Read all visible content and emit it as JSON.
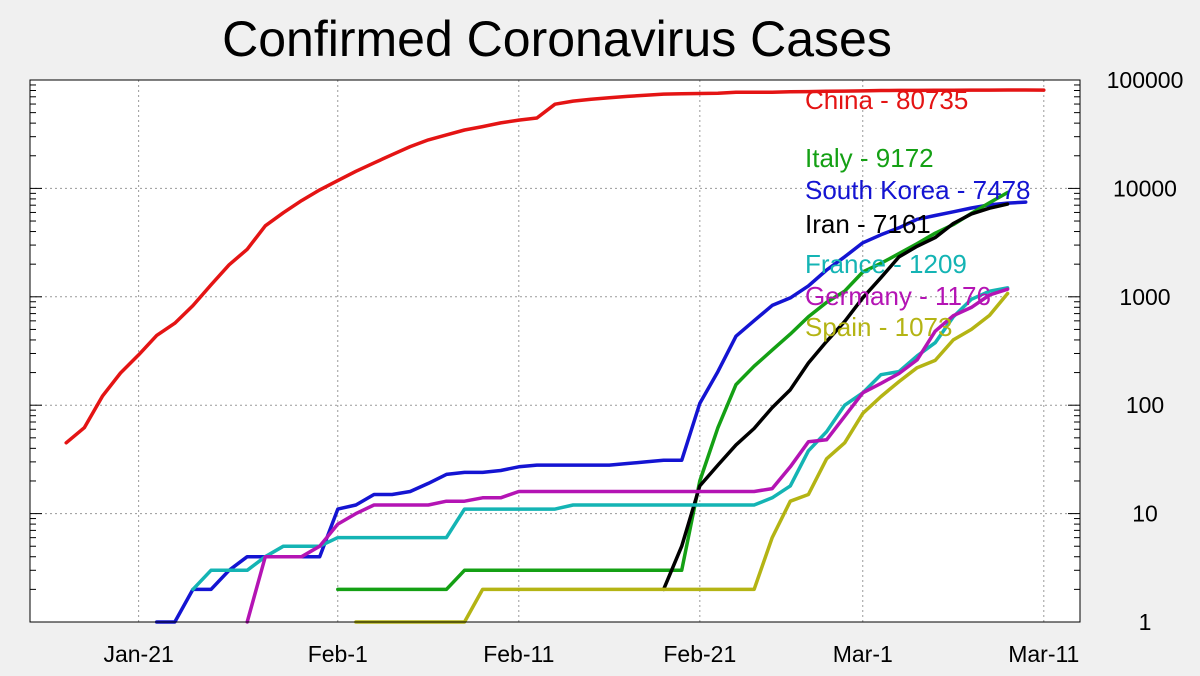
{
  "chart_data": {
    "type": "line",
    "title": "Confirmed Coronavirus Cases",
    "xlabel": "",
    "ylabel": "",
    "y_scale": "log",
    "ylim": [
      1,
      100000
    ],
    "xlim_day": [
      -6,
      52
    ],
    "grid": true,
    "y_axis_side": "right",
    "y_ticks": [
      {
        "value": 1,
        "label": "1"
      },
      {
        "value": 10,
        "label": "10"
      },
      {
        "value": 100,
        "label": "100"
      },
      {
        "value": 1000,
        "label": "1000"
      },
      {
        "value": 10000,
        "label": "10000"
      },
      {
        "value": 100000,
        "label": "100000"
      }
    ],
    "x_ticks": [
      {
        "day": 0,
        "label": "Jan-21"
      },
      {
        "day": 11,
        "label": "Feb-1"
      },
      {
        "day": 21,
        "label": "Feb-11"
      },
      {
        "day": 31,
        "label": "Feb-21"
      },
      {
        "day": 40,
        "label": "Mar-1"
      },
      {
        "day": 50,
        "label": "Mar-11"
      }
    ],
    "series": [
      {
        "name": "China",
        "label": "China - 80735",
        "color": "#e41414",
        "points": [
          [
            -4,
            45
          ],
          [
            -3,
            62
          ],
          [
            -2,
            121
          ],
          [
            -1,
            198
          ],
          [
            0,
            291
          ],
          [
            1,
            440
          ],
          [
            2,
            571
          ],
          [
            3,
            830
          ],
          [
            4,
            1287
          ],
          [
            5,
            1975
          ],
          [
            6,
            2744
          ],
          [
            7,
            4515
          ],
          [
            8,
            5974
          ],
          [
            9,
            7711
          ],
          [
            10,
            9692
          ],
          [
            11,
            11791
          ],
          [
            12,
            14380
          ],
          [
            13,
            17205
          ],
          [
            14,
            20438
          ],
          [
            15,
            24324
          ],
          [
            16,
            28018
          ],
          [
            17,
            31161
          ],
          [
            18,
            34546
          ],
          [
            19,
            37198
          ],
          [
            20,
            40171
          ],
          [
            21,
            42638
          ],
          [
            22,
            44653
          ],
          [
            23,
            59804
          ],
          [
            24,
            63851
          ],
          [
            25,
            66492
          ],
          [
            26,
            68500
          ],
          [
            27,
            70548
          ],
          [
            28,
            72436
          ],
          [
            29,
            74185
          ],
          [
            30,
            74576
          ],
          [
            31,
            75077
          ],
          [
            32,
            75550
          ],
          [
            33,
            77001
          ],
          [
            34,
            77022
          ],
          [
            35,
            77241
          ],
          [
            36,
            77754
          ],
          [
            37,
            78166
          ],
          [
            38,
            78600
          ],
          [
            39,
            78928
          ],
          [
            40,
            79356
          ],
          [
            41,
            79932
          ],
          [
            42,
            80136
          ],
          [
            43,
            80261
          ],
          [
            44,
            80386
          ],
          [
            45,
            80537
          ],
          [
            46,
            80690
          ],
          [
            47,
            80770
          ],
          [
            48,
            80823
          ],
          [
            49,
            80860
          ],
          [
            50,
            80735
          ]
        ]
      },
      {
        "name": "South Korea",
        "label": "South Korea - 7478",
        "color": "#1414d2",
        "points": [
          [
            1,
            1
          ],
          [
            2,
            1
          ],
          [
            3,
            2
          ],
          [
            4,
            2
          ],
          [
            5,
            3
          ],
          [
            6,
            4
          ],
          [
            7,
            4
          ],
          [
            8,
            4
          ],
          [
            9,
            4
          ],
          [
            10,
            4
          ],
          [
            11,
            11
          ],
          [
            12,
            12
          ],
          [
            13,
            15
          ],
          [
            14,
            15
          ],
          [
            15,
            16
          ],
          [
            16,
            19
          ],
          [
            17,
            23
          ],
          [
            18,
            24
          ],
          [
            19,
            24
          ],
          [
            20,
            25
          ],
          [
            21,
            27
          ],
          [
            22,
            28
          ],
          [
            23,
            28
          ],
          [
            24,
            28
          ],
          [
            25,
            28
          ],
          [
            26,
            28
          ],
          [
            27,
            29
          ],
          [
            28,
            30
          ],
          [
            29,
            31
          ],
          [
            30,
            31
          ],
          [
            31,
            104
          ],
          [
            32,
            204
          ],
          [
            33,
            433
          ],
          [
            34,
            602
          ],
          [
            35,
            833
          ],
          [
            36,
            977
          ],
          [
            37,
            1261
          ],
          [
            38,
            1766
          ],
          [
            39,
            2337
          ],
          [
            40,
            3150
          ],
          [
            41,
            3736
          ],
          [
            42,
            4335
          ],
          [
            43,
            5186
          ],
          [
            44,
            5621
          ],
          [
            45,
            6088
          ],
          [
            46,
            6593
          ],
          [
            47,
            7041
          ],
          [
            48,
            7314
          ],
          [
            49,
            7478
          ]
        ]
      },
      {
        "name": "Italy",
        "label": "Italy - 9172",
        "color": "#14a014",
        "points": [
          [
            11,
            2
          ],
          [
            12,
            2
          ],
          [
            13,
            2
          ],
          [
            14,
            2
          ],
          [
            15,
            2
          ],
          [
            16,
            2
          ],
          [
            17,
            2
          ],
          [
            18,
            3
          ],
          [
            19,
            3
          ],
          [
            20,
            3
          ],
          [
            21,
            3
          ],
          [
            22,
            3
          ],
          [
            23,
            3
          ],
          [
            24,
            3
          ],
          [
            25,
            3
          ],
          [
            26,
            3
          ],
          [
            27,
            3
          ],
          [
            28,
            3
          ],
          [
            29,
            3
          ],
          [
            30,
            3
          ],
          [
            31,
            20
          ],
          [
            32,
            62
          ],
          [
            33,
            155
          ],
          [
            34,
            229
          ],
          [
            35,
            322
          ],
          [
            36,
            453
          ],
          [
            37,
            655
          ],
          [
            38,
            888
          ],
          [
            39,
            1128
          ],
          [
            40,
            1694
          ],
          [
            41,
            2036
          ],
          [
            42,
            2502
          ],
          [
            43,
            3089
          ],
          [
            44,
            3858
          ],
          [
            45,
            4636
          ],
          [
            46,
            5883
          ],
          [
            47,
            7375
          ],
          [
            48,
            9172
          ]
        ]
      },
      {
        "name": "Iran",
        "label": "Iran - 7161",
        "color": "#000000",
        "points": [
          [
            29,
            2
          ],
          [
            30,
            5
          ],
          [
            31,
            18
          ],
          [
            32,
            28
          ],
          [
            33,
            43
          ],
          [
            34,
            61
          ],
          [
            35,
            95
          ],
          [
            36,
            139
          ],
          [
            37,
            245
          ],
          [
            38,
            388
          ],
          [
            39,
            593
          ],
          [
            40,
            978
          ],
          [
            41,
            1501
          ],
          [
            42,
            2336
          ],
          [
            43,
            2922
          ],
          [
            44,
            3513
          ],
          [
            45,
            4747
          ],
          [
            46,
            5823
          ],
          [
            47,
            6566
          ],
          [
            48,
            7161
          ]
        ]
      },
      {
        "name": "France",
        "label": "France - 1209",
        "color": "#14b4b4",
        "points": [
          [
            3,
            2
          ],
          [
            4,
            3
          ],
          [
            5,
            3
          ],
          [
            6,
            3
          ],
          [
            7,
            4
          ],
          [
            8,
            5
          ],
          [
            9,
            5
          ],
          [
            10,
            5
          ],
          [
            11,
            6
          ],
          [
            12,
            6
          ],
          [
            13,
            6
          ],
          [
            14,
            6
          ],
          [
            15,
            6
          ],
          [
            16,
            6
          ],
          [
            17,
            6
          ],
          [
            18,
            11
          ],
          [
            19,
            11
          ],
          [
            20,
            11
          ],
          [
            21,
            11
          ],
          [
            22,
            11
          ],
          [
            23,
            11
          ],
          [
            24,
            12
          ],
          [
            25,
            12
          ],
          [
            26,
            12
          ],
          [
            27,
            12
          ],
          [
            28,
            12
          ],
          [
            29,
            12
          ],
          [
            30,
            12
          ],
          [
            31,
            12
          ],
          [
            32,
            12
          ],
          [
            33,
            12
          ],
          [
            34,
            12
          ],
          [
            35,
            14
          ],
          [
            36,
            18
          ],
          [
            37,
            38
          ],
          [
            38,
            57
          ],
          [
            39,
            100
          ],
          [
            40,
            130
          ],
          [
            41,
            191
          ],
          [
            42,
            204
          ],
          [
            43,
            285
          ],
          [
            44,
            377
          ],
          [
            45,
            653
          ],
          [
            46,
            949
          ],
          [
            47,
            1126
          ],
          [
            48,
            1209
          ]
        ]
      },
      {
        "name": "Germany",
        "label": "Germany - 1176",
        "color": "#b414b4",
        "points": [
          [
            6,
            1
          ],
          [
            7,
            4
          ],
          [
            8,
            4
          ],
          [
            9,
            4
          ],
          [
            10,
            5
          ],
          [
            11,
            8
          ],
          [
            12,
            10
          ],
          [
            13,
            12
          ],
          [
            14,
            12
          ],
          [
            15,
            12
          ],
          [
            16,
            12
          ],
          [
            17,
            13
          ],
          [
            18,
            13
          ],
          [
            19,
            14
          ],
          [
            20,
            14
          ],
          [
            21,
            16
          ],
          [
            22,
            16
          ],
          [
            23,
            16
          ],
          [
            24,
            16
          ],
          [
            25,
            16
          ],
          [
            26,
            16
          ],
          [
            27,
            16
          ],
          [
            28,
            16
          ],
          [
            29,
            16
          ],
          [
            30,
            16
          ],
          [
            31,
            16
          ],
          [
            32,
            16
          ],
          [
            33,
            16
          ],
          [
            34,
            16
          ],
          [
            35,
            17
          ],
          [
            36,
            27
          ],
          [
            37,
            46
          ],
          [
            38,
            48
          ],
          [
            39,
            79
          ],
          [
            40,
            130
          ],
          [
            41,
            159
          ],
          [
            42,
            196
          ],
          [
            43,
            262
          ],
          [
            44,
            482
          ],
          [
            45,
            670
          ],
          [
            46,
            799
          ],
          [
            47,
            1040
          ],
          [
            48,
            1176
          ]
        ]
      },
      {
        "name": "Spain",
        "label": "Spain - 1073",
        "color": "#b4b414",
        "points": [
          [
            12,
            1
          ],
          [
            13,
            1
          ],
          [
            14,
            1
          ],
          [
            15,
            1
          ],
          [
            16,
            1
          ],
          [
            17,
            1
          ],
          [
            18,
            1
          ],
          [
            19,
            2
          ],
          [
            20,
            2
          ],
          [
            21,
            2
          ],
          [
            22,
            2
          ],
          [
            23,
            2
          ],
          [
            24,
            2
          ],
          [
            25,
            2
          ],
          [
            26,
            2
          ],
          [
            27,
            2
          ],
          [
            28,
            2
          ],
          [
            29,
            2
          ],
          [
            30,
            2
          ],
          [
            31,
            2
          ],
          [
            32,
            2
          ],
          [
            33,
            2
          ],
          [
            34,
            2
          ],
          [
            35,
            6
          ],
          [
            36,
            13
          ],
          [
            37,
            15
          ],
          [
            38,
            32
          ],
          [
            39,
            45
          ],
          [
            40,
            84
          ],
          [
            41,
            120
          ],
          [
            42,
            165
          ],
          [
            43,
            222
          ],
          [
            44,
            259
          ],
          [
            45,
            400
          ],
          [
            46,
            500
          ],
          [
            47,
            673
          ],
          [
            48,
            1073
          ]
        ]
      }
    ]
  }
}
